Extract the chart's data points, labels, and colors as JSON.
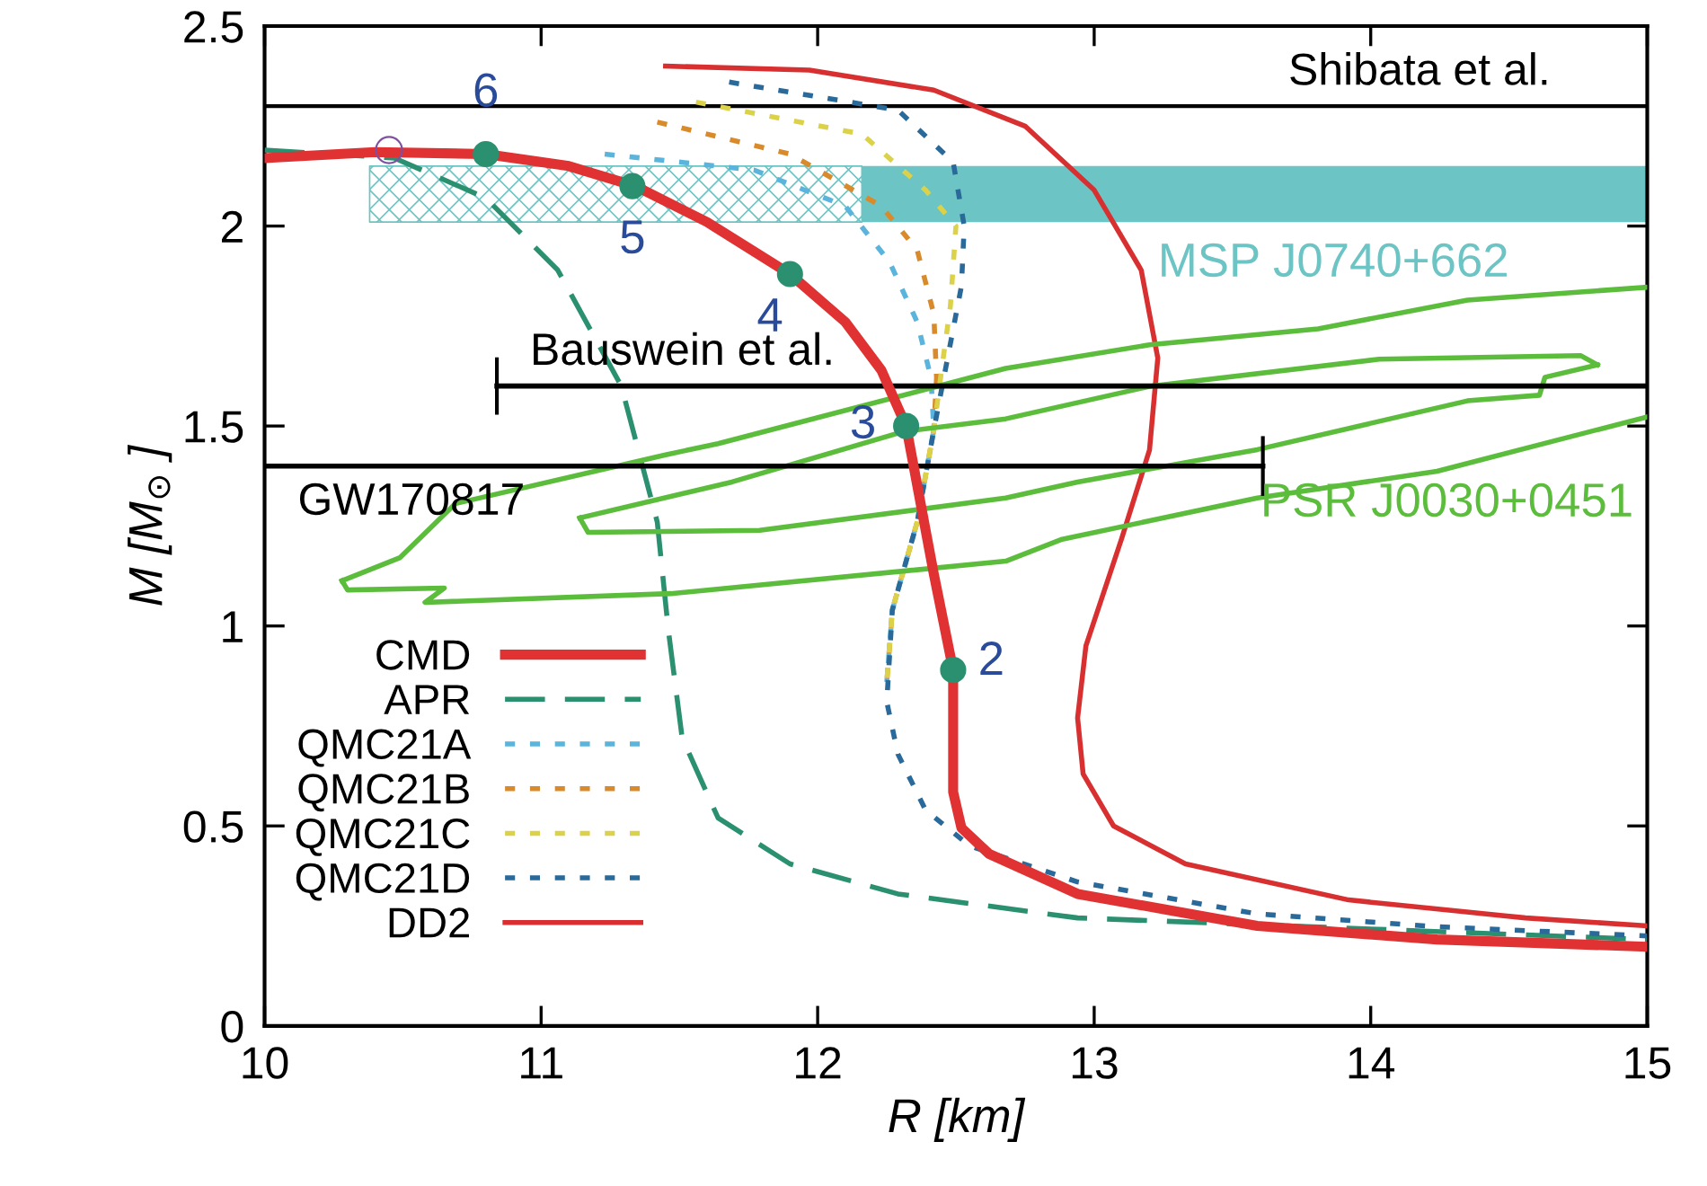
{
  "chart_data": {
    "type": "line",
    "xlabel": "R [km]",
    "ylabel": "M [M$_{⊙}$ ]",
    "xlim": [
      10,
      15
    ],
    "ylim": [
      0,
      2.5
    ],
    "xticks": [
      10,
      11,
      12,
      13,
      14,
      15
    ],
    "yticks": [
      0,
      0.5,
      1,
      1.5,
      2,
      2.5
    ],
    "legend": "bottom left",
    "grid": false,
    "ref_lines": [
      {
        "axis": "y",
        "value": 2.3,
        "label": "Shibata et al.",
        "color": "#000000"
      }
    ],
    "series": [
      {
        "name": "CMD",
        "color": "#e03232",
        "line_style": "solid",
        "x": [
          10.0,
          10.4,
          10.8,
          11.1,
          11.34,
          11.6,
          11.9,
          12.1,
          12.23,
          12.32,
          12.42,
          12.49,
          12.49,
          12.52,
          12.62,
          12.94,
          13.59,
          14.24,
          15.0
        ],
        "values": [
          2.17,
          2.185,
          2.18,
          2.15,
          2.1,
          2.01,
          1.88,
          1.76,
          1.64,
          1.5,
          1.13,
          0.89,
          0.585,
          0.495,
          0.43,
          0.33,
          0.25,
          0.216,
          0.198
        ]
      },
      {
        "name": "APR",
        "color": "#2a9070",
        "line_style": "dashed",
        "x": [
          10.0,
          10.47,
          10.8,
          11.06,
          11.29,
          11.42,
          11.46,
          11.51,
          11.64,
          11.9,
          12.29,
          12.94,
          15.0
        ],
        "values": [
          2.19,
          2.17,
          2.07,
          1.89,
          1.6,
          1.26,
          0.99,
          0.72,
          0.52,
          0.405,
          0.33,
          0.27,
          0.216
        ]
      },
      {
        "name": "QMC21A",
        "color": "#5ab4dc",
        "line_style": "dotted",
        "x": [
          11.23,
          11.77,
          12.1,
          12.26,
          12.36,
          12.41,
          12.42,
          12.36,
          12.27,
          12.25
        ],
        "values": [
          2.18,
          2.14,
          2.05,
          1.91,
          1.76,
          1.62,
          1.49,
          1.26,
          1.04,
          0.86
        ]
      },
      {
        "name": "QMC21B",
        "color": "#d98a2a",
        "line_style": "dotted",
        "x": [
          11.42,
          11.9,
          12.23,
          12.36,
          12.42,
          12.43,
          12.42,
          12.36,
          12.27,
          12.25
        ],
        "values": [
          2.26,
          2.18,
          2.05,
          1.94,
          1.78,
          1.62,
          1.49,
          1.26,
          1.04,
          0.86
        ]
      },
      {
        "name": "QMC21C",
        "color": "#dcd24a",
        "line_style": "dotted",
        "x": [
          11.56,
          12.16,
          12.39,
          12.5,
          12.48,
          12.45,
          12.42,
          12.36,
          12.27,
          12.25
        ],
        "values": [
          2.31,
          2.23,
          2.09,
          2.0,
          1.8,
          1.65,
          1.49,
          1.26,
          1.04,
          0.86
        ]
      },
      {
        "name": "QMC21D",
        "color": "#2a6a9a",
        "line_style": "dotted",
        "x": [
          11.68,
          12.29,
          12.49,
          12.53,
          12.52,
          12.47,
          12.42,
          12.36,
          12.27,
          12.25,
          12.29,
          12.39,
          12.55,
          12.94,
          13.59,
          14.24,
          15.0
        ],
        "values": [
          2.36,
          2.29,
          2.16,
          2.0,
          1.85,
          1.67,
          1.49,
          1.26,
          1.04,
          0.81,
          0.68,
          0.54,
          0.45,
          0.36,
          0.28,
          0.248,
          0.225
        ]
      },
      {
        "name": "DD2",
        "color": "#d83030",
        "line_style": "solid",
        "x": [
          11.45,
          11.97,
          12.42,
          12.75,
          13.0,
          13.17,
          13.23,
          13.2,
          13.1,
          12.97,
          12.94,
          12.96,
          13.07,
          13.33,
          13.92,
          14.56,
          15.0
        ],
        "values": [
          2.4,
          2.39,
          2.34,
          2.25,
          2.09,
          1.89,
          1.67,
          1.44,
          1.22,
          0.95,
          0.77,
          0.63,
          0.5,
          0.405,
          0.315,
          0.27,
          0.25
        ]
      },
      {
        "name": "PSR J0030+0451",
        "color": "#5cbc3c",
        "line_style": "solid",
        "x": [
          10.28,
          10.49,
          10.69,
          11.45,
          11.64,
          12.68,
          13.2,
          13.81,
          14.35,
          15.0
        ],
        "values": [
          1.113,
          1.171,
          1.306,
          1.428,
          1.456,
          1.644,
          1.703,
          1.743,
          1.815,
          1.847
        ]
      },
      {
        "color": "#5cbc3c",
        "line_style": "solid",
        "x": [
          10.28,
          10.3,
          10.65,
          10.58,
          11.47,
          12.68,
          12.88,
          13.59,
          14.24,
          15.0
        ],
        "values": [
          1.113,
          1.09,
          1.095,
          1.059,
          1.081,
          1.162,
          1.216,
          1.32,
          1.387,
          1.523
        ]
      },
      {
        "color": "#5cbc3c",
        "line_style": "solid",
        "x": [
          11.14,
          11.69,
          12.31,
          12.68,
          13.2,
          14.03,
          14.76,
          14.82
        ],
        "values": [
          1.27,
          1.36,
          1.486,
          1.518,
          1.599,
          1.667,
          1.676,
          1.653
        ]
      },
      {
        "color": "#5cbc3c",
        "line_style": "solid",
        "x": [
          11.14,
          11.17,
          11.79,
          12.68,
          12.94,
          13.59,
          14.35,
          14.61,
          14.63,
          14.82
        ],
        "values": [
          1.27,
          1.234,
          1.239,
          1.32,
          1.36,
          1.441,
          1.563,
          1.577,
          1.622,
          1.653
        ]
      },
      {
        "name": "MSP J0740+662",
        "color": "#6cc4c4",
        "x": [
          12.16,
          15.0
        ],
        "values": [
          null,
          null
        ],
        "lower": [
          2.01,
          2.01
        ],
        "upper": [
          2.15,
          2.15
        ]
      },
      {
        "color": "#6cc4c4",
        "x": [
          10.38,
          12.16
        ],
        "values": [
          null,
          null
        ],
        "lower": [
          2.01,
          2.01
        ],
        "upper": [
          2.15,
          2.15
        ]
      },
      {
        "name": "Bauswein et al.",
        "color": "#000000",
        "line_style": "solid",
        "x": [
          10.84,
          15.0
        ],
        "values": [
          1.6,
          1.6
        ],
        "errors": [
          0.067,
          null
        ]
      },
      {
        "name": "GW170817",
        "color": "#000000",
        "line_style": "solid",
        "x": [
          10.0,
          13.61
        ],
        "values": [
          1.4,
          1.4
        ],
        "errors": [
          null,
          0.07
        ]
      },
      {
        "type": "scatter",
        "color": "#2a9070",
        "marker": "circle",
        "x": [
          12.49,
          12.32,
          11.9,
          11.33,
          10.8
        ],
        "values": [
          0.89,
          1.5,
          1.88,
          2.1,
          2.18
        ]
      },
      {
        "type": "scatter",
        "color": "#8050a0",
        "marker": "circle",
        "x": [
          10.45
        ],
        "values": [
          2.19
        ]
      }
    ],
    "annotations": [
      {
        "text": "2",
        "x": 12.49,
        "y": 0.89
      },
      {
        "text": "3",
        "x": 12.32,
        "y": 1.5
      },
      {
        "text": "4",
        "x": 11.9,
        "y": 1.88
      },
      {
        "text": "5",
        "x": 11.33,
        "y": 2.1
      },
      {
        "text": "6",
        "x": 10.8,
        "y": 2.18
      }
    ]
  }
}
